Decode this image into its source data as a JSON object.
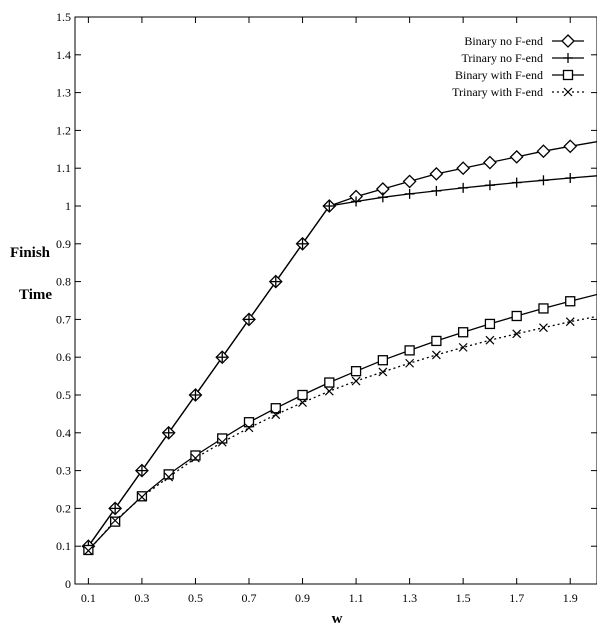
{
  "chart_data": {
    "type": "line",
    "title": "",
    "xlabel": "w",
    "ylabel_lines": [
      "Finish",
      "Time"
    ],
    "xlim": [
      0.05,
      2.0
    ],
    "ylim": [
      0,
      1.5
    ],
    "xticks": [
      0.1,
      0.3,
      0.5,
      0.7,
      0.9,
      1.1,
      1.3,
      1.5,
      1.7,
      1.9
    ],
    "xtick_labels": [
      "0.1",
      "0.3",
      "0.5",
      "0.7",
      "0.9",
      "1.1",
      "1.3",
      "1.5",
      "1.7",
      "1.9"
    ],
    "yticks": [
      0,
      0.1,
      0.2,
      0.3,
      0.4,
      0.5,
      0.6,
      0.7,
      0.8,
      0.9,
      1,
      1.1,
      1.2,
      1.3,
      1.4,
      1.5
    ],
    "ytick_labels": [
      "0",
      "0.1",
      "0.2",
      "0.3",
      "0.4",
      "0.5",
      "0.6",
      "0.7",
      "0.8",
      "0.9",
      "1",
      "1.1",
      "1.2",
      "1.3",
      "1.4",
      "1.5"
    ],
    "legend_position": "top-right",
    "grid": false,
    "series": [
      {
        "name": "Binary no F-end",
        "marker": "diamond",
        "dash": "solid",
        "x": [
          0.1,
          0.2,
          0.3,
          0.4,
          0.5,
          0.6,
          0.7,
          0.8,
          0.9,
          1.0,
          1.1,
          1.2,
          1.3,
          1.4,
          1.5,
          1.6,
          1.7,
          1.8,
          1.9,
          2.0
        ],
        "y": [
          0.1,
          0.2,
          0.3,
          0.4,
          0.5,
          0.6,
          0.7,
          0.8,
          0.9,
          1.0,
          1.025,
          1.045,
          1.065,
          1.085,
          1.1,
          1.115,
          1.13,
          1.145,
          1.158,
          1.17
        ]
      },
      {
        "name": "Trinary no F-end",
        "marker": "plus",
        "dash": "solid",
        "x": [
          0.1,
          0.2,
          0.3,
          0.4,
          0.5,
          0.6,
          0.7,
          0.8,
          0.9,
          1.0,
          1.1,
          1.2,
          1.3,
          1.4,
          1.5,
          1.6,
          1.7,
          1.8,
          1.9,
          2.0
        ],
        "y": [
          0.1,
          0.2,
          0.3,
          0.4,
          0.5,
          0.6,
          0.7,
          0.8,
          0.9,
          1.0,
          1.012,
          1.023,
          1.032,
          1.04,
          1.048,
          1.055,
          1.062,
          1.068,
          1.074,
          1.08
        ]
      },
      {
        "name": "Binary with F-end",
        "marker": "square",
        "dash": "solid",
        "x": [
          0.1,
          0.2,
          0.3,
          0.4,
          0.5,
          0.6,
          0.7,
          0.8,
          0.9,
          1.0,
          1.1,
          1.2,
          1.3,
          1.4,
          1.5,
          1.6,
          1.7,
          1.8,
          1.9,
          2.0
        ],
        "y": [
          0.09,
          0.165,
          0.232,
          0.29,
          0.34,
          0.385,
          0.428,
          0.465,
          0.5,
          0.533,
          0.563,
          0.592,
          0.618,
          0.643,
          0.666,
          0.688,
          0.709,
          0.729,
          0.748,
          0.766
        ]
      },
      {
        "name": "Trinary with F-end",
        "marker": "x",
        "dash": "dotted",
        "x": [
          0.1,
          0.2,
          0.3,
          0.4,
          0.5,
          0.6,
          0.7,
          0.8,
          0.9,
          1.0,
          1.1,
          1.2,
          1.3,
          1.4,
          1.5,
          1.6,
          1.7,
          1.8,
          1.9,
          2.0
        ],
        "y": [
          0.088,
          0.168,
          0.23,
          0.283,
          0.333,
          0.375,
          0.413,
          0.448,
          0.48,
          0.51,
          0.537,
          0.561,
          0.584,
          0.606,
          0.626,
          0.645,
          0.662,
          0.678,
          0.694,
          0.708
        ]
      }
    ]
  }
}
